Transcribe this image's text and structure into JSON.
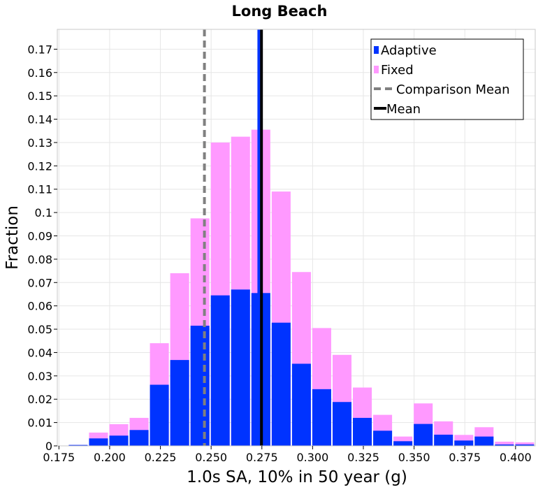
{
  "chart_data": {
    "type": "bar",
    "title": "Long Beach",
    "xlabel": "1.0s SA, 10% in 50 year (g)",
    "ylabel": "Fraction",
    "xlim": [
      0.1742,
      0.4097
    ],
    "ylim": [
      0,
      0.1785
    ],
    "xticks": [
      "0.175",
      "0.200",
      "0.225",
      "0.250",
      "0.275",
      "0.300",
      "0.325",
      "0.350",
      "0.375",
      "0.400"
    ],
    "yticks": [
      "0",
      "0.01",
      "0.02",
      "0.03",
      "0.04",
      "0.05",
      "0.06",
      "0.07",
      "0.08",
      "0.09",
      "0.1",
      "0.11",
      "0.12",
      "0.13",
      "0.14",
      "0.15",
      "0.16",
      "0.17"
    ],
    "bin_width": 0.01,
    "bin_centers": [
      0.1845,
      0.1945,
      0.2045,
      0.2145,
      0.2245,
      0.2345,
      0.2445,
      0.2545,
      0.2645,
      0.2745,
      0.2845,
      0.2945,
      0.3045,
      0.3145,
      0.3245,
      0.3345,
      0.3445,
      0.3545,
      0.3645,
      0.3745,
      0.3845,
      0.3945,
      0.4045
    ],
    "series": [
      {
        "name": "Fixed",
        "color": "#ff99ff",
        "values": [
          0.0004,
          0.0057,
          0.0093,
          0.012,
          0.044,
          0.074,
          0.0975,
          0.13,
          0.1325,
          0.1355,
          0.109,
          0.0745,
          0.0505,
          0.039,
          0.025,
          0.0133,
          0.004,
          0.0182,
          0.0105,
          0.0047,
          0.008,
          0.0018,
          0.0015
        ]
      },
      {
        "name": "Adaptive",
        "color": "#0033ff",
        "values": [
          0.0004,
          0.0032,
          0.0044,
          0.0068,
          0.0262,
          0.0368,
          0.0515,
          0.0645,
          0.067,
          0.0655,
          0.0528,
          0.0352,
          0.0243,
          0.0188,
          0.012,
          0.0065,
          0.002,
          0.0094,
          0.0048,
          0.0023,
          0.004,
          0.0006,
          0.0006
        ]
      }
    ],
    "lines": [
      {
        "name": "Comparison Mean",
        "x": 0.2467,
        "color": "#808080",
        "style": "dashed"
      },
      {
        "name": "Adaptive mean",
        "x": 0.2735,
        "color": "#0033ff",
        "style": "solid"
      },
      {
        "name": "Mean",
        "x": 0.2748,
        "color": "#000000",
        "style": "solid"
      }
    ],
    "legend": {
      "placement": "top-right",
      "entries": [
        {
          "label": "Adaptive",
          "color": "#0033ff",
          "marker": "square"
        },
        {
          "label": "Fixed",
          "color": "#ff99ff",
          "marker": "square"
        },
        {
          "label": "Comparison Mean",
          "color": "#808080",
          "marker": "dashed-line"
        },
        {
          "label": "Mean",
          "color": "#000000",
          "marker": "line"
        }
      ]
    },
    "grid": true
  }
}
